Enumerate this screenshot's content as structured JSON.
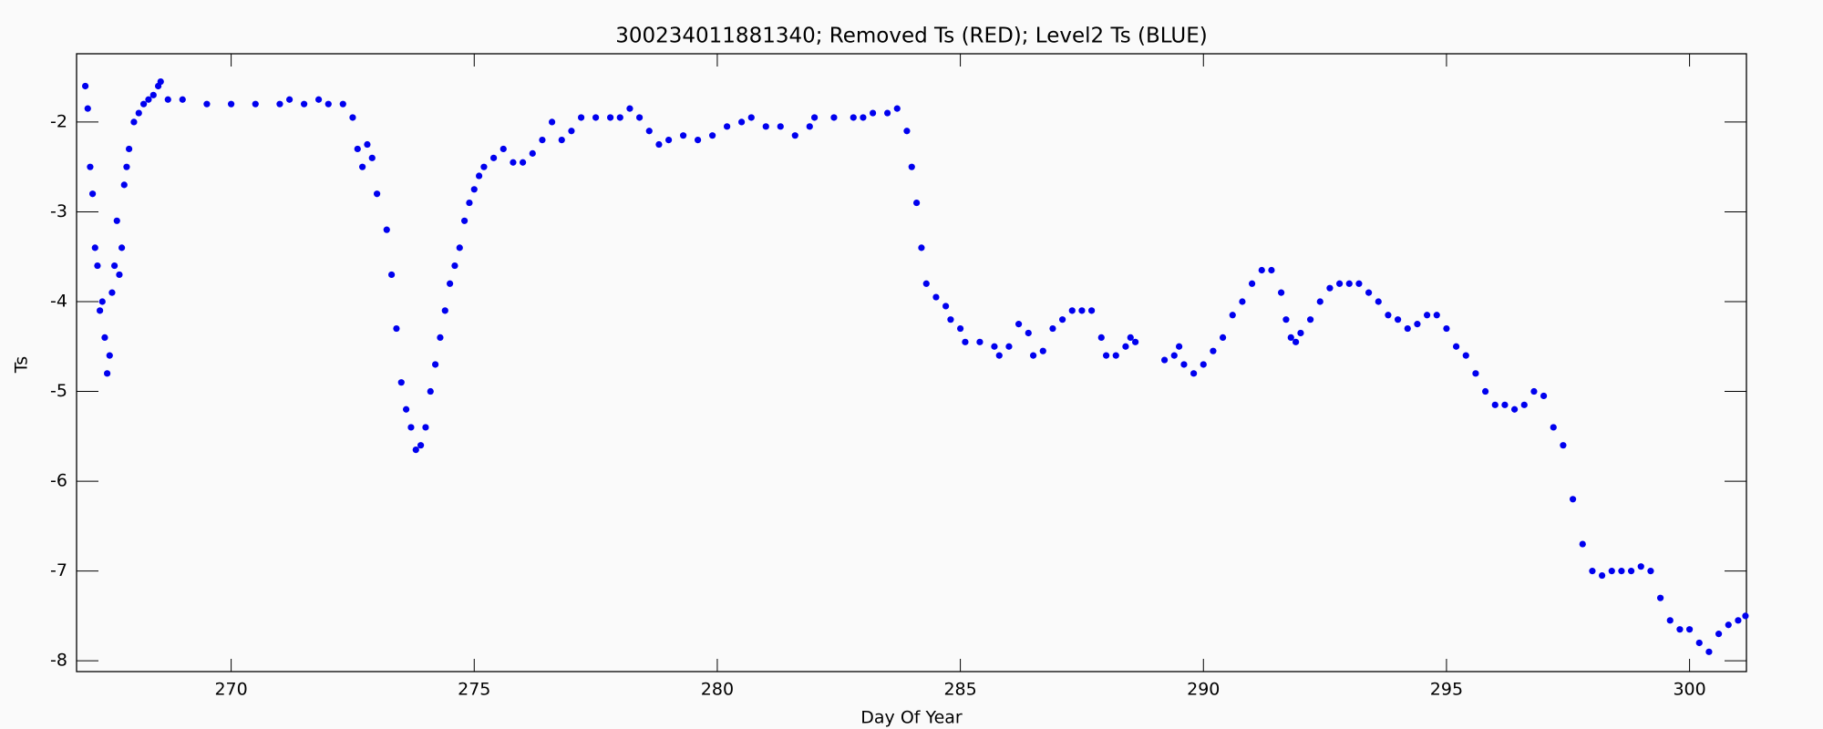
{
  "chart_data": {
    "type": "scatter",
    "title": "300234011881340; Removed Ts (RED); Level2 Ts (BLUE)",
    "x_label": "Day Of Year",
    "y_label": "Ts",
    "color": "#0000ee",
    "xlim": [
      266.82,
      301.17
    ],
    "ylim": [
      -8.12,
      -1.24
    ],
    "xticks": [
      270,
      275,
      280,
      285,
      290,
      295,
      300
    ],
    "yticks": [
      -8,
      -7,
      -6,
      -5,
      -4,
      -3,
      -2
    ],
    "x": [
      267.0,
      267.05,
      267.1,
      267.15,
      267.2,
      267.25,
      267.3,
      267.35,
      267.4,
      267.45,
      267.5,
      267.55,
      267.6,
      267.65,
      267.7,
      267.75,
      267.8,
      267.85,
      267.9,
      268.0,
      268.1,
      268.2,
      268.3,
      268.4,
      268.5,
      268.55,
      268.7,
      269.0,
      269.5,
      270.0,
      270.5,
      271.0,
      271.2,
      271.5,
      271.8,
      272.0,
      272.3,
      272.5,
      272.6,
      272.7,
      272.8,
      272.9,
      273.0,
      273.2,
      273.3,
      273.4,
      273.5,
      273.6,
      273.7,
      273.8,
      273.9,
      274.0,
      274.1,
      274.2,
      274.3,
      274.4,
      274.5,
      274.6,
      274.7,
      274.8,
      274.9,
      275.0,
      275.1,
      275.2,
      275.4,
      275.6,
      275.8,
      276.0,
      276.2,
      276.4,
      276.6,
      276.8,
      277.0,
      277.2,
      277.5,
      277.8,
      278.0,
      278.2,
      278.4,
      278.6,
      278.8,
      279.0,
      279.3,
      279.6,
      279.9,
      280.2,
      280.5,
      280.7,
      281.0,
      281.3,
      281.6,
      281.9,
      282.0,
      282.4,
      282.8,
      283.0,
      283.2,
      283.5,
      283.7,
      283.9,
      284.0,
      284.1,
      284.2,
      284.3,
      284.5,
      284.7,
      284.8,
      285.0,
      285.1,
      285.4,
      285.7,
      285.8,
      286.0,
      286.2,
      286.4,
      286.5,
      286.7,
      286.9,
      287.1,
      287.3,
      287.5,
      287.7,
      287.9,
      288.0,
      288.2,
      288.4,
      288.5,
      288.6,
      289.2,
      289.4,
      289.5,
      289.6,
      289.8,
      290.0,
      290.2,
      290.4,
      290.6,
      290.8,
      291.0,
      291.2,
      291.4,
      291.6,
      291.7,
      291.8,
      291.9,
      292.0,
      292.2,
      292.4,
      292.6,
      292.8,
      293.0,
      293.2,
      293.4,
      293.6,
      293.8,
      294.0,
      294.2,
      294.4,
      294.6,
      294.8,
      295.0,
      295.2,
      295.4,
      295.6,
      295.8,
      296.0,
      296.2,
      296.4,
      296.6,
      296.8,
      297.0,
      297.2,
      297.4,
      297.6,
      297.8,
      298.0,
      298.2,
      298.4,
      298.6,
      298.8,
      299.0,
      299.2,
      299.4,
      299.6,
      299.8,
      300.0,
      300.2,
      300.4,
      300.6,
      300.8,
      301.0,
      301.15
    ],
    "values": [
      -1.6,
      -1.85,
      -2.5,
      -2.8,
      -3.4,
      -3.6,
      -4.1,
      -4.0,
      -4.4,
      -4.8,
      -4.6,
      -3.9,
      -3.6,
      -3.1,
      -3.7,
      -3.4,
      -2.7,
      -2.5,
      -2.3,
      -2.0,
      -1.9,
      -1.8,
      -1.75,
      -1.7,
      -1.6,
      -1.55,
      -1.75,
      -1.75,
      -1.8,
      -1.8,
      -1.8,
      -1.8,
      -1.75,
      -1.8,
      -1.75,
      -1.8,
      -1.8,
      -1.95,
      -2.3,
      -2.5,
      -2.25,
      -2.4,
      -2.8,
      -3.2,
      -3.7,
      -4.3,
      -4.9,
      -5.2,
      -5.4,
      -5.65,
      -5.6,
      -5.4,
      -5.0,
      -4.7,
      -4.4,
      -4.1,
      -3.8,
      -3.6,
      -3.4,
      -3.1,
      -2.9,
      -2.75,
      -2.6,
      -2.5,
      -2.4,
      -2.3,
      -2.45,
      -2.45,
      -2.35,
      -2.2,
      -2.0,
      -2.2,
      -2.1,
      -1.95,
      -1.95,
      -1.95,
      -1.95,
      -1.85,
      -1.95,
      -2.1,
      -2.25,
      -2.2,
      -2.15,
      -2.2,
      -2.15,
      -2.05,
      -2.0,
      -1.95,
      -2.05,
      -2.05,
      -2.15,
      -2.05,
      -1.95,
      -1.95,
      -1.95,
      -1.95,
      -1.9,
      -1.9,
      -1.85,
      -2.1,
      -2.5,
      -2.9,
      -3.4,
      -3.8,
      -3.95,
      -4.05,
      -4.2,
      -4.3,
      -4.45,
      -4.45,
      -4.5,
      -4.6,
      -4.5,
      -4.25,
      -4.35,
      -4.6,
      -4.55,
      -4.3,
      -4.2,
      -4.1,
      -4.1,
      -4.1,
      -4.4,
      -4.6,
      -4.6,
      -4.5,
      -4.4,
      -4.45,
      -4.65,
      -4.6,
      -4.5,
      -4.7,
      -4.8,
      -4.7,
      -4.55,
      -4.4,
      -4.15,
      -4.0,
      -3.8,
      -3.65,
      -3.65,
      -3.9,
      -4.2,
      -4.4,
      -4.45,
      -4.35,
      -4.2,
      -4.0,
      -3.85,
      -3.8,
      -3.8,
      -3.8,
      -3.9,
      -4.0,
      -4.15,
      -4.2,
      -4.3,
      -4.25,
      -4.15,
      -4.15,
      -4.3,
      -4.5,
      -4.6,
      -4.8,
      -5.0,
      -5.15,
      -5.15,
      -5.2,
      -5.15,
      -5.0,
      -5.05,
      -5.4,
      -5.6,
      -6.2,
      -6.7,
      -7.0,
      -7.05,
      -7.0,
      -7.0,
      -7.0,
      -6.95,
      -7.0,
      -7.3,
      -7.55,
      -7.65,
      -7.65,
      -7.8,
      -7.9,
      -7.7,
      -7.6,
      -7.55,
      -7.5
    ]
  }
}
